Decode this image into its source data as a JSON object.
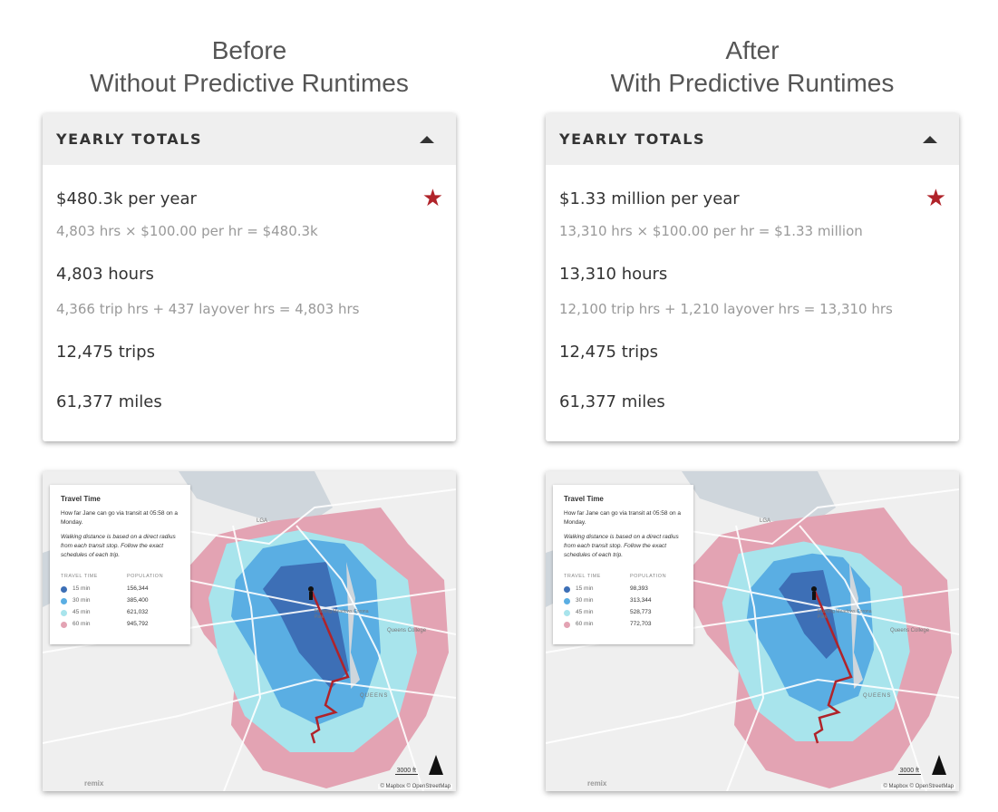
{
  "columns": [
    {
      "title_line1": "Before",
      "title_line2": "Without Predictive Runtimes",
      "panel": {
        "header": "YEARLY TOTALS",
        "cost": "$480.3k per year",
        "cost_detail": "4,803 hrs × $100.00 per hr = $480.3k",
        "hours": "4,803 hours",
        "hours_detail": "4,366 trip hrs + 437 layover hrs = 4,803 hrs",
        "trips": "12,475 trips",
        "miles": "61,377 miles"
      },
      "map": {
        "legend_title": "Travel Time",
        "legend_desc": "How far Jane can go via transit at 05:58 on a Monday.",
        "legend_note": "Walking distance is based on a direct radius from each transit stop. Follow the exact schedules of each trip.",
        "col_time": "TRAVEL TIME",
        "col_pop": "POPULATION",
        "rows": [
          {
            "time": "15 min",
            "population": "156,344"
          },
          {
            "time": "30 min",
            "population": "385,400"
          },
          {
            "time": "45 min",
            "population": "621,032"
          },
          {
            "time": "60 min",
            "population": "945,792"
          }
        ]
      }
    },
    {
      "title_line1": "After",
      "title_line2": "With Predictive Runtimes",
      "panel": {
        "header": "YEARLY TOTALS",
        "cost": "$1.33 million per year",
        "cost_detail": "13,310 hrs × $100.00 per hr = $1.33 million",
        "hours": "13,310 hours",
        "hours_detail": "12,100 trip hrs + 1,210 layover hrs = 13,310 hrs",
        "trips": "12,475 trips",
        "miles": "61,377 miles"
      },
      "map": {
        "legend_title": "Travel Time",
        "legend_desc": "How far Jane can go via transit at 05:58 on a Monday.",
        "legend_note": "Walking distance is based on a direct radius from each transit stop. Follow the exact schedules of each trip.",
        "col_time": "TRAVEL TIME",
        "col_pop": "POPULATION",
        "rows": [
          {
            "time": "15 min",
            "population": "98,393"
          },
          {
            "time": "30 min",
            "population": "313,344"
          },
          {
            "time": "45 min",
            "population": "528,773"
          },
          {
            "time": "60 min",
            "population": "772,703"
          }
        ]
      }
    }
  ],
  "map_labels": {
    "airport": "LGA",
    "park": "Flushing Meadows Corona Park",
    "college": "Queens College",
    "borough": "QUEENS",
    "scale": "3000 ft",
    "attribution": "© Mapbox © OpenStreetMap",
    "logo": "remix"
  },
  "colors": {
    "min15": "#3d6fb6",
    "min30": "#5aaee3",
    "min45": "#a8e4ec",
    "min60": "#e3a3b3",
    "route": "#b0232a",
    "star": "#b0232a"
  },
  "icons": {
    "collapse": "caret-up-icon",
    "favorite": "star-icon",
    "north": "north-arrow-icon"
  }
}
